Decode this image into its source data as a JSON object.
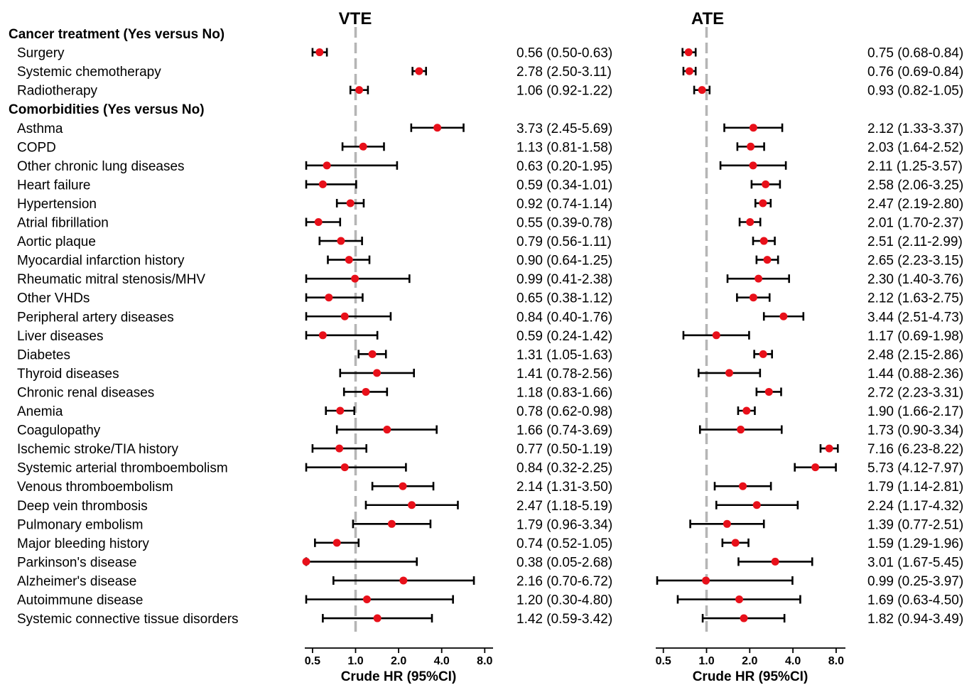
{
  "chart_data": {
    "type": "forest",
    "x_scale": "log2",
    "reference_line": 1.0,
    "colors": {
      "point": "#e8101a",
      "ci": "#000000",
      "reference": "#b5b5b5"
    },
    "ticks": [
      0.5,
      1.0,
      2.0,
      4.0,
      8.0
    ],
    "tick_labels": [
      "0.5",
      "1.0",
      "2.0",
      "4.0",
      "8.0"
    ],
    "xlabel": "Crude HR (95%CI)",
    "panels": [
      {
        "title": "VTE",
        "xlim": [
          0.4,
          9.0
        ]
      },
      {
        "title": "ATE",
        "xlim": [
          0.4,
          9.0
        ]
      }
    ],
    "rows": [
      {
        "kind": "section",
        "label": "Cancer treatment (Yes versus No)"
      },
      {
        "kind": "item",
        "label": "Surgery",
        "vte": {
          "hr": 0.56,
          "lo": 0.5,
          "hi": 0.63,
          "text": "0.56 (0.50-0.63)"
        },
        "ate": {
          "hr": 0.75,
          "lo": 0.68,
          "hi": 0.84,
          "text": "0.75 (0.68-0.84)"
        }
      },
      {
        "kind": "item",
        "label": "Systemic chemotherapy",
        "vte": {
          "hr": 2.78,
          "lo": 2.5,
          "hi": 3.11,
          "text": "2.78 (2.50-3.11)"
        },
        "ate": {
          "hr": 0.76,
          "lo": 0.69,
          "hi": 0.84,
          "text": "0.76 (0.69-0.84)"
        }
      },
      {
        "kind": "item",
        "label": "Radiotherapy",
        "vte": {
          "hr": 1.06,
          "lo": 0.92,
          "hi": 1.22,
          "text": "1.06 (0.92-1.22)"
        },
        "ate": {
          "hr": 0.93,
          "lo": 0.82,
          "hi": 1.05,
          "text": "0.93 (0.82-1.05)"
        }
      },
      {
        "kind": "section",
        "label": "Comorbidities (Yes versus No)"
      },
      {
        "kind": "item",
        "label": "Asthma",
        "vte": {
          "hr": 3.73,
          "lo": 2.45,
          "hi": 5.69,
          "text": "3.73 (2.45-5.69)"
        },
        "ate": {
          "hr": 2.12,
          "lo": 1.33,
          "hi": 3.37,
          "text": "2.12 (1.33-3.37)"
        }
      },
      {
        "kind": "item",
        "label": "COPD",
        "vte": {
          "hr": 1.13,
          "lo": 0.81,
          "hi": 1.58,
          "text": "1.13 (0.81-1.58)"
        },
        "ate": {
          "hr": 2.03,
          "lo": 1.64,
          "hi": 2.52,
          "text": "2.03 (1.64-2.52)"
        }
      },
      {
        "kind": "item",
        "label": "Other chronic lung diseases",
        "vte": {
          "hr": 0.63,
          "lo": 0.2,
          "hi": 1.95,
          "text": "0.63 (0.20-1.95)"
        },
        "ate": {
          "hr": 2.11,
          "lo": 1.25,
          "hi": 3.57,
          "text": "2.11 (1.25-3.57)"
        }
      },
      {
        "kind": "item",
        "label": "Heart failure",
        "vte": {
          "hr": 0.59,
          "lo": 0.34,
          "hi": 1.01,
          "text": "0.59 (0.34-1.01)"
        },
        "ate": {
          "hr": 2.58,
          "lo": 2.06,
          "hi": 3.25,
          "text": "2.58 (2.06-3.25)"
        }
      },
      {
        "kind": "item",
        "label": "Hypertension",
        "vte": {
          "hr": 0.92,
          "lo": 0.74,
          "hi": 1.14,
          "text": "0.92 (0.74-1.14)"
        },
        "ate": {
          "hr": 2.47,
          "lo": 2.19,
          "hi": 2.8,
          "text": "2.47 (2.19-2.80)"
        }
      },
      {
        "kind": "item",
        "label": "Atrial fibrillation",
        "vte": {
          "hr": 0.55,
          "lo": 0.39,
          "hi": 0.78,
          "text": "0.55 (0.39-0.78)"
        },
        "ate": {
          "hr": 2.01,
          "lo": 1.7,
          "hi": 2.37,
          "text": "2.01 (1.70-2.37)"
        }
      },
      {
        "kind": "item",
        "label": "Aortic plaque",
        "vte": {
          "hr": 0.79,
          "lo": 0.56,
          "hi": 1.11,
          "text": "0.79 (0.56-1.11)"
        },
        "ate": {
          "hr": 2.51,
          "lo": 2.11,
          "hi": 2.99,
          "text": "2.51 (2.11-2.99)"
        }
      },
      {
        "kind": "item",
        "label": "Myocardial infarction history",
        "vte": {
          "hr": 0.9,
          "lo": 0.64,
          "hi": 1.25,
          "text": "0.90 (0.64-1.25)"
        },
        "ate": {
          "hr": 2.65,
          "lo": 2.23,
          "hi": 3.15,
          "text": "2.65 (2.23-3.15)"
        }
      },
      {
        "kind": "item",
        "label": "Rheumatic mitral stenosis/MHV",
        "vte": {
          "hr": 0.99,
          "lo": 0.41,
          "hi": 2.38,
          "text": "0.99 (0.41-2.38)"
        },
        "ate": {
          "hr": 2.3,
          "lo": 1.4,
          "hi": 3.76,
          "text": "2.30 (1.40-3.76)"
        }
      },
      {
        "kind": "item",
        "label": "Other VHDs",
        "vte": {
          "hr": 0.65,
          "lo": 0.38,
          "hi": 1.12,
          "text": "0.65 (0.38-1.12)"
        },
        "ate": {
          "hr": 2.12,
          "lo": 1.63,
          "hi": 2.75,
          "text": "2.12 (1.63-2.75)"
        }
      },
      {
        "kind": "item",
        "label": "Peripheral artery diseases",
        "vte": {
          "hr": 0.84,
          "lo": 0.4,
          "hi": 1.76,
          "text": "0.84 (0.40-1.76)"
        },
        "ate": {
          "hr": 3.44,
          "lo": 2.51,
          "hi": 4.73,
          "text": "3.44 (2.51-4.73)"
        }
      },
      {
        "kind": "item",
        "label": "Liver diseases",
        "vte": {
          "hr": 0.59,
          "lo": 0.24,
          "hi": 1.42,
          "text": "0.59 (0.24-1.42)"
        },
        "ate": {
          "hr": 1.17,
          "lo": 0.69,
          "hi": 1.98,
          "text": "1.17 (0.69-1.98)"
        }
      },
      {
        "kind": "item",
        "label": "Diabetes",
        "vte": {
          "hr": 1.31,
          "lo": 1.05,
          "hi": 1.63,
          "text": "1.31 (1.05-1.63)"
        },
        "ate": {
          "hr": 2.48,
          "lo": 2.15,
          "hi": 2.86,
          "text": "2.48 (2.15-2.86)"
        }
      },
      {
        "kind": "item",
        "label": "Thyroid diseases",
        "vte": {
          "hr": 1.41,
          "lo": 0.78,
          "hi": 2.56,
          "text": "1.41 (0.78-2.56)"
        },
        "ate": {
          "hr": 1.44,
          "lo": 0.88,
          "hi": 2.36,
          "text": "1.44 (0.88-2.36)"
        }
      },
      {
        "kind": "item",
        "label": "Chronic renal diseases",
        "vte": {
          "hr": 1.18,
          "lo": 0.83,
          "hi": 1.66,
          "text": "1.18 (0.83-1.66)"
        },
        "ate": {
          "hr": 2.72,
          "lo": 2.23,
          "hi": 3.31,
          "text": "2.72 (2.23-3.31)"
        }
      },
      {
        "kind": "item",
        "label": "Anemia",
        "vte": {
          "hr": 0.78,
          "lo": 0.62,
          "hi": 0.98,
          "text": "0.78 (0.62-0.98)"
        },
        "ate": {
          "hr": 1.9,
          "lo": 1.66,
          "hi": 2.17,
          "text": "1.90 (1.66-2.17)"
        }
      },
      {
        "kind": "item",
        "label": "Coagulopathy",
        "vte": {
          "hr": 1.66,
          "lo": 0.74,
          "hi": 3.69,
          "text": "1.66 (0.74-3.69)"
        },
        "ate": {
          "hr": 1.73,
          "lo": 0.9,
          "hi": 3.34,
          "text": "1.73 (0.90-3.34)"
        }
      },
      {
        "kind": "item",
        "label": "Ischemic stroke/TIA history",
        "vte": {
          "hr": 0.77,
          "lo": 0.5,
          "hi": 1.19,
          "text": "0.77 (0.50-1.19)"
        },
        "ate": {
          "hr": 7.16,
          "lo": 6.23,
          "hi": 8.22,
          "text": "7.16 (6.23-8.22)"
        }
      },
      {
        "kind": "item",
        "label": "Systemic arterial thromboembolism",
        "vte": {
          "hr": 0.84,
          "lo": 0.32,
          "hi": 2.25,
          "text": "0.84 (0.32-2.25)"
        },
        "ate": {
          "hr": 5.73,
          "lo": 4.12,
          "hi": 7.97,
          "text": "5.73 (4.12-7.97)"
        }
      },
      {
        "kind": "item",
        "label": "Venous thromboembolism",
        "vte": {
          "hr": 2.14,
          "lo": 1.31,
          "hi": 3.5,
          "text": "2.14 (1.31-3.50)"
        },
        "ate": {
          "hr": 1.79,
          "lo": 1.14,
          "hi": 2.81,
          "text": "1.79 (1.14-2.81)"
        }
      },
      {
        "kind": "item",
        "label": "Deep vein thrombosis",
        "vte": {
          "hr": 2.47,
          "lo": 1.18,
          "hi": 5.19,
          "text": "2.47 (1.18-5.19)"
        },
        "ate": {
          "hr": 2.24,
          "lo": 1.17,
          "hi": 4.32,
          "text": "2.24 (1.17-4.32)"
        }
      },
      {
        "kind": "item",
        "label": "Pulmonary embolism",
        "vte": {
          "hr": 1.79,
          "lo": 0.96,
          "hi": 3.34,
          "text": "1.79 (0.96-3.34)"
        },
        "ate": {
          "hr": 1.39,
          "lo": 0.77,
          "hi": 2.51,
          "text": "1.39 (0.77-2.51)"
        }
      },
      {
        "kind": "item",
        "label": "Major bleeding history",
        "vte": {
          "hr": 0.74,
          "lo": 0.52,
          "hi": 1.05,
          "text": "0.74 (0.52-1.05)"
        },
        "ate": {
          "hr": 1.59,
          "lo": 1.29,
          "hi": 1.96,
          "text": "1.59 (1.29-1.96)"
        }
      },
      {
        "kind": "item",
        "label": "Parkinson's disease",
        "vte": {
          "hr": 0.38,
          "lo": 0.05,
          "hi": 2.68,
          "text": "0.38 (0.05-2.68)"
        },
        "ate": {
          "hr": 3.01,
          "lo": 1.67,
          "hi": 5.45,
          "text": "3.01 (1.67-5.45)"
        }
      },
      {
        "kind": "item",
        "label": "Alzheimer's disease",
        "vte": {
          "hr": 2.16,
          "lo": 0.7,
          "hi": 6.72,
          "text": "2.16 (0.70-6.72)"
        },
        "ate": {
          "hr": 0.99,
          "lo": 0.25,
          "hi": 3.97,
          "text": "0.99 (0.25-3.97)"
        }
      },
      {
        "kind": "item",
        "label": "Autoimmune disease",
        "vte": {
          "hr": 1.2,
          "lo": 0.3,
          "hi": 4.8,
          "text": "1.20 (0.30-4.80)"
        },
        "ate": {
          "hr": 1.69,
          "lo": 0.63,
          "hi": 4.5,
          "text": "1.69 (0.63-4.50)"
        }
      },
      {
        "kind": "item",
        "label": "Systemic connective tissue disorders",
        "vte": {
          "hr": 1.42,
          "lo": 0.59,
          "hi": 3.42,
          "text": "1.42 (0.59-3.42)"
        },
        "ate": {
          "hr": 1.82,
          "lo": 0.94,
          "hi": 3.49,
          "text": "1.82 (0.94-3.49)"
        }
      }
    ]
  }
}
